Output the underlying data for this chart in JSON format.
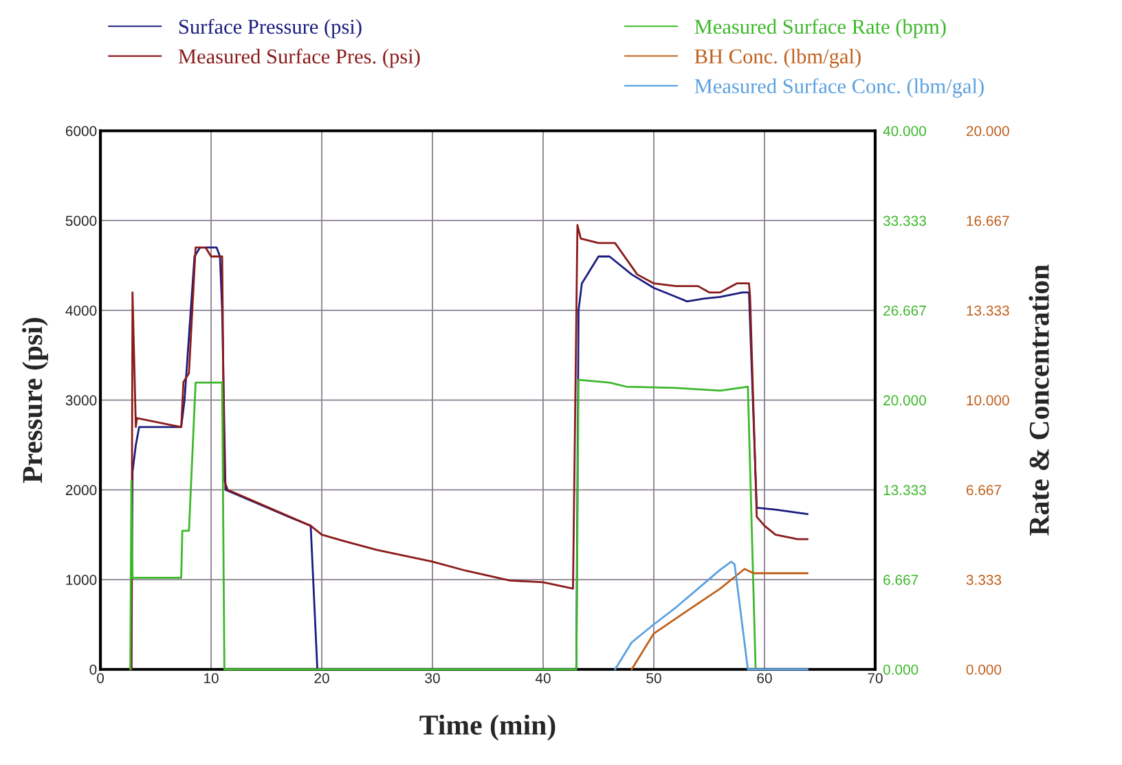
{
  "chart_data": {
    "type": "line",
    "xlabel": "Time (min)",
    "ylabel": "Pressure (psi)",
    "y2label": "Rate & Concentration",
    "xlim": [
      0,
      70
    ],
    "xticks": [
      0,
      10,
      20,
      30,
      40,
      50,
      60,
      70
    ],
    "ylim": [
      0,
      6000
    ],
    "yticks": [
      0,
      1000,
      2000,
      3000,
      4000,
      5000,
      6000
    ],
    "y2lim": [
      0,
      40
    ],
    "y2ticks": [
      {
        "value": 0,
        "label": "0.000"
      },
      {
        "value": 6.667,
        "label": "6.667"
      },
      {
        "value": 13.333,
        "label": "13.333"
      },
      {
        "value": 20,
        "label": "20.000"
      },
      {
        "value": 26.667,
        "label": "26.667"
      },
      {
        "value": 33.333,
        "label": "33.333"
      },
      {
        "value": 40,
        "label": "40.000"
      }
    ],
    "y3lim": [
      0,
      20
    ],
    "y3ticks": [
      {
        "value": 0,
        "label": "0.000"
      },
      {
        "value": 3.333,
        "label": "3.333"
      },
      {
        "value": 6.667,
        "label": "6.667"
      },
      {
        "value": 10,
        "label": "10.000"
      },
      {
        "value": 13.333,
        "label": "13.333"
      },
      {
        "value": 16.667,
        "label": "16.667"
      },
      {
        "value": 20,
        "label": "20.000"
      }
    ],
    "grid": true,
    "legend": "top",
    "series": [
      {
        "name": "Surface Pressure (psi)",
        "color": "#1c1c80",
        "x": [
          2.8,
          2.9,
          3.2,
          3.5,
          7.3,
          7.6,
          8.5,
          9,
          10.5,
          10.8,
          11,
          11.3,
          17,
          19,
          19.6,
          43,
          43.2,
          43.5,
          45,
          46,
          48,
          50,
          52,
          53,
          54.5,
          56,
          58,
          58.6,
          59.3,
          61,
          63.9
        ],
        "values": [
          0,
          2200,
          2500,
          2700,
          2700,
          3000,
          4600,
          4700,
          4700,
          4600,
          4000,
          2000,
          1700,
          1600,
          0,
          0,
          4000,
          4300,
          4600,
          4600,
          4400,
          4250,
          4150,
          4100,
          4130,
          4150,
          4200,
          4200,
          1800,
          1780,
          1730
        ]
      },
      {
        "name": "Measured Surface Pres. (psi)",
        "color": "#8b1a1a",
        "x": [
          2.8,
          2.9,
          3.2,
          3.3,
          7.3,
          7.5,
          8.0,
          8.6,
          9.5,
          10,
          11,
          11.2,
          11.5,
          19,
          20,
          22,
          25,
          30,
          33,
          37,
          40,
          42.7,
          43.1,
          43.4,
          45,
          46.5,
          48.5,
          50,
          52,
          54,
          55,
          56,
          57.5,
          58.6,
          58.7,
          59.3,
          60,
          61,
          63,
          63.9
        ],
        "values": [
          0,
          4200,
          2700,
          2800,
          2700,
          3200,
          3300,
          4700,
          4700,
          4600,
          4600,
          2100,
          2000,
          1600,
          1500,
          1430,
          1330,
          1200,
          1100,
          990,
          970,
          900,
          4950,
          4800,
          4750,
          4750,
          4400,
          4300,
          4270,
          4270,
          4200,
          4200,
          4300,
          4300,
          4150,
          1700,
          1600,
          1500,
          1450,
          1450
        ]
      },
      {
        "name": "Measured Surface Rate (bpm)",
        "color": "#3cb82a",
        "axis": "y2",
        "x": [
          2.7,
          2.8,
          2.9,
          7.3,
          7.4,
          8.0,
          8.6,
          11,
          11.2,
          43,
          43.2,
          46,
          47.5,
          52,
          56,
          58.5,
          59.2
        ],
        "values": [
          0,
          14,
          6.8,
          6.8,
          10.3,
          10.3,
          21.3,
          21.3,
          0,
          0,
          21.5,
          21.3,
          21,
          20.9,
          20.7,
          21,
          0
        ]
      },
      {
        "name": "BH Conc. (lbm/gal)",
        "color": "#c0601c",
        "axis": "y3",
        "x": [
          48,
          50,
          53,
          56,
          58.2,
          59,
          63.9
        ],
        "values": [
          0,
          1.33,
          2.17,
          3.0,
          3.73,
          3.57,
          3.57
        ]
      },
      {
        "name": "Measured Surface Conc. (lbm/gal)",
        "color": "#5aa0e0",
        "axis": "y3",
        "x": [
          46.5,
          48,
          50,
          52,
          54,
          56,
          57,
          57.3,
          58.5,
          63.9
        ],
        "values": [
          0,
          1.0,
          1.67,
          2.3,
          3.0,
          3.7,
          4.0,
          3.9,
          0,
          0
        ]
      }
    ]
  }
}
